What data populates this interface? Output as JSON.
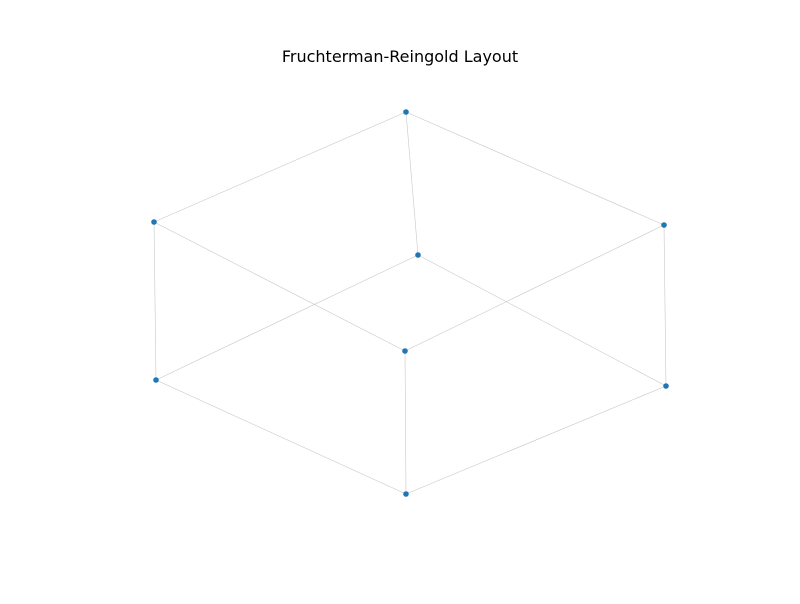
{
  "diagram": {
    "title": "Fruchterman-Reingold Layout",
    "node_color": "#1f77b4",
    "edge_color": "#c8c8c8",
    "nodes": [
      {
        "id": "top"
      },
      {
        "id": "upper-left"
      },
      {
        "id": "upper-right"
      },
      {
        "id": "inner-back"
      },
      {
        "id": "inner-front"
      },
      {
        "id": "lower-left"
      },
      {
        "id": "lower-right"
      },
      {
        "id": "bottom"
      }
    ],
    "edges": [
      [
        "top",
        "upper-left"
      ],
      [
        "top",
        "upper-right"
      ],
      [
        "top",
        "inner-back"
      ],
      [
        "upper-left",
        "lower-left"
      ],
      [
        "upper-left",
        "inner-front"
      ],
      [
        "upper-right",
        "inner-front"
      ],
      [
        "upper-right",
        "lower-right"
      ],
      [
        "inner-back",
        "lower-left"
      ],
      [
        "inner-back",
        "lower-right"
      ],
      [
        "inner-front",
        "bottom"
      ],
      [
        "lower-left",
        "bottom"
      ],
      [
        "lower-right",
        "bottom"
      ]
    ]
  }
}
